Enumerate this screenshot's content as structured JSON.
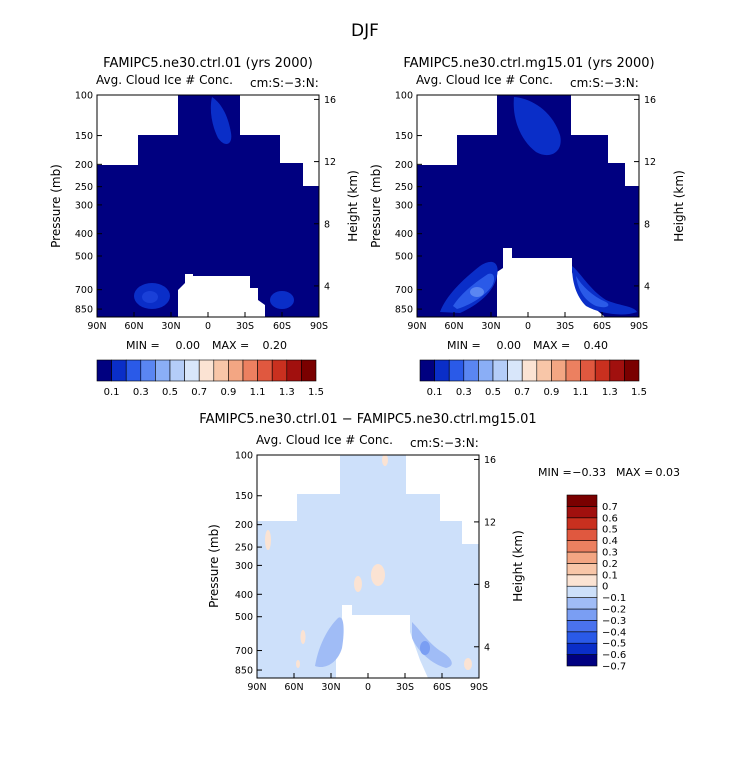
{
  "page": {
    "main_title": "DJF",
    "diff_title": "FAMIPC5.ne30.ctrl.01 − FAMIPC5.ne30.ctrl.mg15.01"
  },
  "colors": {
    "panel_scale": [
      "#000080",
      "#0a2ec8",
      "#2a5ae8",
      "#5a86f2",
      "#8aaef6",
      "#b4cdf8",
      "#d8e6fa",
      "#fbe3d3",
      "#f8c6a8",
      "#f3a683",
      "#ec8060",
      "#e0583f",
      "#c9301f",
      "#a1100e",
      "#7a0000"
    ],
    "diff_scale": [
      "#000080",
      "#0a2ec8",
      "#2a5ae8",
      "#4a72ee",
      "#7a9ef3",
      "#a0bcf6",
      "#cde0fa",
      "#fbe3d3",
      "#f8c6a8",
      "#f3a683",
      "#ec8060",
      "#e0583f",
      "#c9301f",
      "#a1100e",
      "#7a0000"
    ]
  },
  "chart_data": [
    {
      "type": "heatmap",
      "title": "FAMIPC5.ne30.ctrl.01 (yrs 2000)",
      "subtitle": "Avg. Cloud Ice # Conc.",
      "units": "cm:S:−3:N:",
      "xlabel": "",
      "ylabel": "Pressure (mb)",
      "y2label": "Height (km)",
      "x_ticks": [
        "90N",
        "60N",
        "30N",
        "0",
        "30S",
        "60S",
        "90S"
      ],
      "y_ticks": [
        "100",
        "150",
        "200",
        "250",
        "300",
        "400",
        "500",
        "700",
        "850"
      ],
      "y2_ticks": [
        "16",
        "12",
        "8",
        "4"
      ],
      "min_label": "MIN =",
      "min_value": "0.00",
      "max_label": "MAX =",
      "max_value": "0.20",
      "min": 0.0,
      "max": 0.2,
      "colorbar_labels": [
        "0.1",
        "0.3",
        "0.5",
        "0.7",
        "0.9",
        "1.1",
        "1.3",
        "1.5"
      ],
      "dominant_value": "<0.1 (darkest blue)"
    },
    {
      "type": "heatmap",
      "title": "FAMIPC5.ne30.ctrl.mg15.01 (yrs 2000)",
      "subtitle": "Avg. Cloud Ice # Conc.",
      "units": "cm:S:−3:N:",
      "xlabel": "",
      "ylabel": "Pressure (mb)",
      "y2label": "Height (km)",
      "x_ticks": [
        "90N",
        "60N",
        "30N",
        "0",
        "30S",
        "60S",
        "90S"
      ],
      "y_ticks": [
        "100",
        "150",
        "200",
        "250",
        "300",
        "400",
        "500",
        "700",
        "850"
      ],
      "y2_ticks": [
        "16",
        "12",
        "8",
        "4"
      ],
      "min_label": "MIN =",
      "min_value": "0.00",
      "max_label": "MAX =",
      "max_value": "0.40",
      "min": 0.0,
      "max": 0.4,
      "colorbar_labels": [
        "0.1",
        "0.3",
        "0.5",
        "0.7",
        "0.9",
        "1.1",
        "1.3",
        "1.5"
      ],
      "dominant_value": "<0.1 (darkest blue)"
    },
    {
      "type": "heatmap",
      "title": "FAMIPC5.ne30.ctrl.01 − FAMIPC5.ne30.ctrl.mg15.01",
      "subtitle": "Avg. Cloud Ice # Conc.",
      "units": "cm:S:−3:N:",
      "xlabel": "",
      "ylabel": "Pressure (mb)",
      "y2label": "Height (km)",
      "x_ticks": [
        "90N",
        "60N",
        "30N",
        "0",
        "30S",
        "60S",
        "90S"
      ],
      "y_ticks": [
        "100",
        "150",
        "200",
        "250",
        "300",
        "400",
        "500",
        "700",
        "850"
      ],
      "y2_ticks": [
        "16",
        "12",
        "8",
        "4"
      ],
      "min_label": "MIN =",
      "min_value": "−0.33",
      "max_label": "MAX =",
      "max_value": "0.03",
      "min": -0.33,
      "max": 0.03,
      "colorbar_labels": [
        "0.7",
        "0.6",
        "0.5",
        "0.4",
        "0.3",
        "0.2",
        "0.1",
        "0",
        "−0.1",
        "−0.2",
        "−0.3",
        "−0.4",
        "−0.5",
        "−0.6",
        "−0.7"
      ],
      "dominant_value": "0 to −0.1 (light blue)"
    }
  ]
}
